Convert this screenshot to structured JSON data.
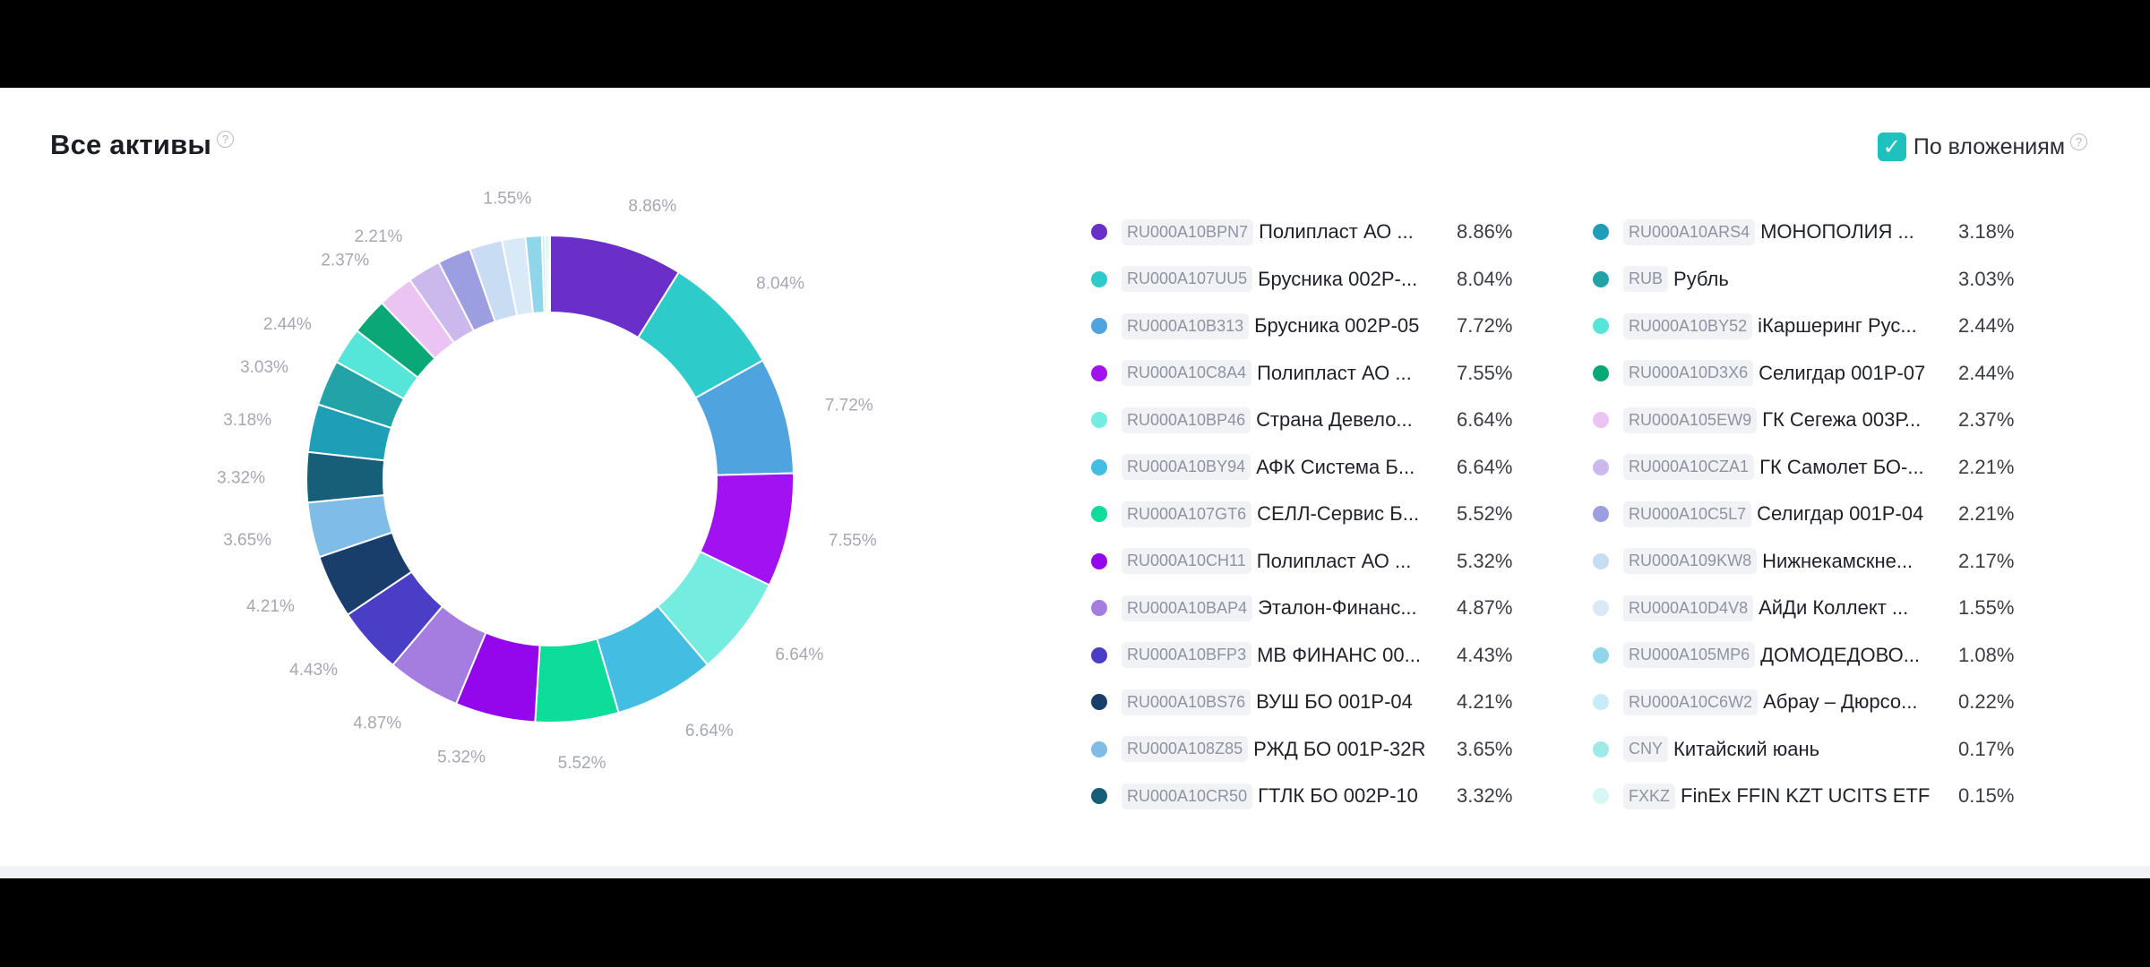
{
  "header": {
    "title": "Все активы",
    "help_glyph": "?",
    "toggle_label": "По вложениям",
    "toggle_checked": true,
    "toggle_check_glyph": "✓"
  },
  "chart_data": {
    "type": "pie",
    "variant": "donut",
    "unit": "%",
    "legend_placement": "right",
    "slices": [
      {
        "code": "RU000A10BPN7",
        "name": "Полипласт АО ...",
        "value": 8.86,
        "label": "8.86%",
        "color": "#6a2fc9"
      },
      {
        "code": "RU000A107UU5",
        "name": "Брусника 002Р-...",
        "value": 8.04,
        "label": "8.04%",
        "color": "#2ecbcb"
      },
      {
        "code": "RU000A10B313",
        "name": "Брусника 002Р-05",
        "value": 7.72,
        "label": "7.72%",
        "color": "#4fa3de"
      },
      {
        "code": "RU000A10C8A4",
        "name": "Полипласт АО ...",
        "value": 7.55,
        "label": "7.55%",
        "color": "#a111f2"
      },
      {
        "code": "RU000A10BP46",
        "name": "Страна Девело...",
        "value": 6.64,
        "label": "6.64%",
        "color": "#74ece0"
      },
      {
        "code": "RU000A10BY94",
        "name": "АФК Система Б...",
        "value": 6.64,
        "label": "6.64%",
        "color": "#44bde3"
      },
      {
        "code": "RU000A107GT6",
        "name": "СЕЛЛ-Сервис Б...",
        "value": 5.52,
        "label": "5.52%",
        "color": "#0ddc9a"
      },
      {
        "code": "RU000A10CH11",
        "name": "Полипласт АО ...",
        "value": 5.32,
        "label": "5.32%",
        "color": "#9407ec"
      },
      {
        "code": "RU000A10BAP4",
        "name": "Эталон-Финанс...",
        "value": 4.87,
        "label": "4.87%",
        "color": "#a57ce0"
      },
      {
        "code": "RU000A10BFP3",
        "name": "МВ ФИНАНС 00...",
        "value": 4.43,
        "label": "4.43%",
        "color": "#4b3ec6"
      },
      {
        "code": "RU000A10BS76",
        "name": "ВУШ БО 001Р-04",
        "value": 4.21,
        "label": "4.21%",
        "color": "#1a3e6c"
      },
      {
        "code": "RU000A108Z85",
        "name": "РЖД БО 001Р-32R",
        "value": 3.65,
        "label": "3.65%",
        "color": "#7fbce8"
      },
      {
        "code": "RU000A10CR50",
        "name": "ГТЛК БО 002Р-10",
        "value": 3.32,
        "label": "3.32%",
        "color": "#175f78"
      },
      {
        "code": "RU000A10ARS4",
        "name": "МОНОПОЛИЯ ...",
        "value": 3.18,
        "label": "3.18%",
        "color": "#1f9eb8"
      },
      {
        "code": "RUB",
        "name": "Рубль",
        "value": 3.03,
        "label": "3.03%",
        "color": "#22a3a8"
      },
      {
        "code": "RU000A10BY52",
        "name": "iКаршеринг Рус...",
        "value": 2.44,
        "label": "2.44%",
        "color": "#55e6d9"
      },
      {
        "code": "RU000A10D3X6",
        "name": "Селигдар 001Р-07",
        "value": 2.44,
        "label": "2.44%",
        "color": "#0aa876"
      },
      {
        "code": "RU000A105EW9",
        "name": "ГК Сегежа 003Р...",
        "value": 2.37,
        "label": "2.37%",
        "color": "#ecc4f3"
      },
      {
        "code": "RU000A10CZA1",
        "name": "ГК Самолет БО-...",
        "value": 2.21,
        "label": "2.21%",
        "color": "#cbb9ee"
      },
      {
        "code": "RU000A10C5L7",
        "name": "Селигдар 001Р-04",
        "value": 2.21,
        "label": "2.21%",
        "color": "#9d9ee2"
      },
      {
        "code": "RU000A109KW8",
        "name": "Нижнекамскне...",
        "value": 2.17,
        "label": "2.17%",
        "color": "#c8dcf3"
      },
      {
        "code": "RU000A10D4V8",
        "name": "АйДи Коллект ...",
        "value": 1.55,
        "label": "1.55%",
        "color": "#dae9f8"
      },
      {
        "code": "RU000A105MP6",
        "name": "ДОМОДЕДОВО...",
        "value": 1.08,
        "label": "1.08%",
        "color": "#8fd6ea"
      },
      {
        "code": "RU000A10C6W2",
        "name": "Абрау – Дюрсо...",
        "value": 0.22,
        "label": "0.22%",
        "color": "#c5ecf7"
      },
      {
        "code": "CNY",
        "name": "Китайский юань",
        "value": 0.17,
        "label": "0.17%",
        "color": "#9fe9e6"
      },
      {
        "code": "FXKZ",
        "name": "FinEx FFIN KZT UCITS ETF",
        "value": 0.15,
        "label": "0.15%",
        "color": "#d7f7f4"
      }
    ]
  }
}
